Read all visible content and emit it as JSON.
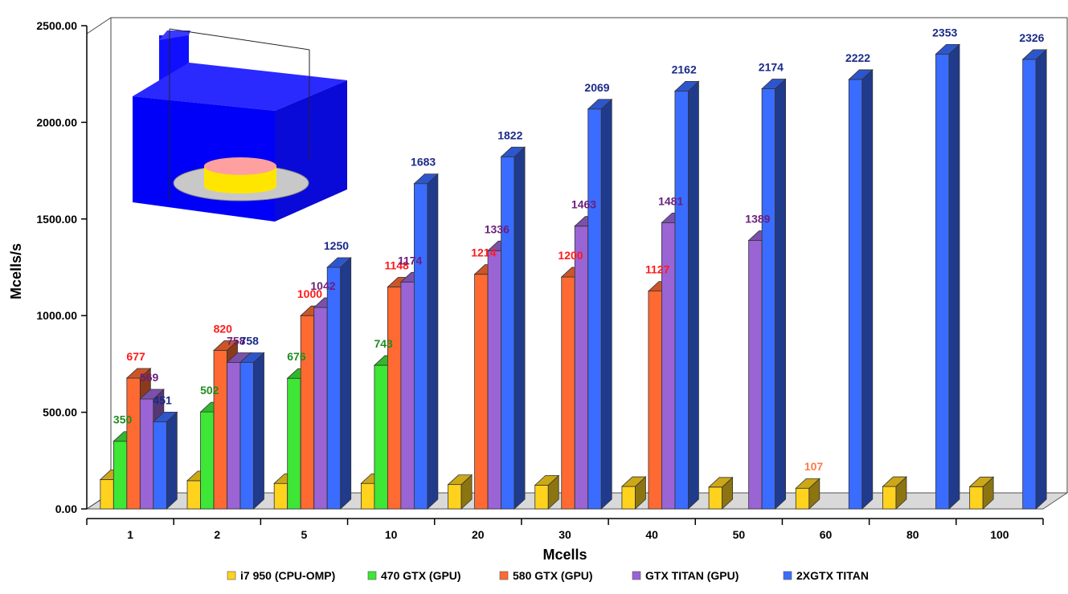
{
  "chart_data": {
    "type": "bar",
    "style": "3d-clustered-column",
    "categories": [
      "1",
      "2",
      "5",
      "10",
      "20",
      "30",
      "40",
      "50",
      "60",
      "80",
      "100"
    ],
    "series": [
      {
        "name": "i7 950 (CPU-OMP)",
        "color": "#ffd21e",
        "label_color": "#ff7a4a",
        "show_labels": false,
        "values": [
          152,
          146,
          132,
          132,
          126,
          123,
          116,
          113,
          107,
          116,
          115
        ]
      },
      {
        "name": "470 GTX (GPU)",
        "color": "#3ee636",
        "label_color": "#1e8c1e",
        "show_labels": true,
        "values": [
          350,
          502,
          676,
          743,
          null,
          null,
          null,
          null,
          null,
          null,
          null
        ]
      },
      {
        "name": "580 GTX (GPU)",
        "color": "#ff6a32",
        "label_color": "#ff1a1a",
        "show_labels": true,
        "values": [
          677,
          820,
          1000,
          1148,
          1214,
          1200,
          1127,
          null,
          null,
          null,
          null
        ]
      },
      {
        "name": "GTX TITAN (GPU)",
        "color": "#9a64d4",
        "label_color": "#6a1f7a",
        "show_labels": true,
        "values": [
          569,
          758,
          1042,
          1174,
          1336,
          1463,
          1481,
          1389,
          null,
          null,
          null
        ]
      },
      {
        "name": "2XGTX TITAN",
        "color": "#3a6cff",
        "label_color": "#1a2a88",
        "show_labels": true,
        "values": [
          451,
          758,
          1250,
          1683,
          1822,
          2069,
          2162,
          2174,
          2222,
          2353,
          2326
        ]
      }
    ],
    "extra_labels": [
      {
        "category_index": 8,
        "series_index": 0,
        "text": "107"
      }
    ],
    "xlabel": "Mcells",
    "ylabel": "Mcells/s",
    "ylim": [
      0,
      2500
    ],
    "yticks": [
      "0.00",
      "500.00",
      "1000.00",
      "1500.00",
      "2000.00",
      "2500.00"
    ],
    "ytick_values": [
      0,
      500,
      1000,
      1500,
      2000,
      2500
    ],
    "legend_position": "bottom",
    "grid": false
  }
}
